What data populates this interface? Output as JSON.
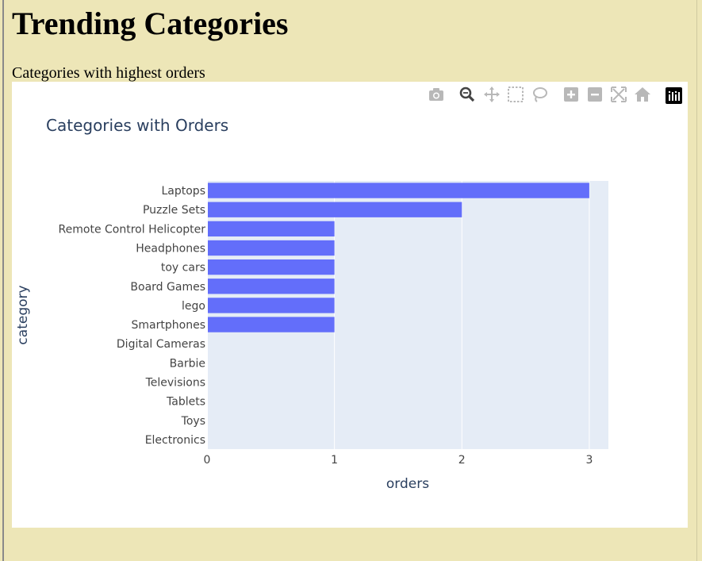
{
  "page": {
    "heading": "Trending Categories",
    "subheading": "Categories with highest orders"
  },
  "modebar": {
    "buttons": [
      "camera-icon",
      "zoom-icon",
      "pan-icon",
      "box-select-icon",
      "lasso-icon",
      "zoom-in-icon",
      "zoom-out-icon",
      "autoscale-icon",
      "reset-axes-icon",
      "plotly-logo-icon"
    ]
  },
  "colors": {
    "bar": "#636efa",
    "plot_bg": "#e5ecf6",
    "text": "#2a3f5f",
    "tick_text": "#444444",
    "page_bg": "#ede6b7"
  },
  "chart_data": {
    "type": "bar",
    "orientation": "horizontal",
    "title": "Categories with Orders",
    "xlabel": "orders",
    "ylabel": "category",
    "xlim": [
      0,
      3.15
    ],
    "xticks": [
      0,
      1,
      2,
      3
    ],
    "grid": true,
    "categories": [
      "Laptops",
      "Puzzle Sets",
      "Remote Control Helicopter",
      "Headphones",
      "toy cars",
      "Board Games",
      "lego",
      "Smartphones",
      "Digital Cameras",
      "Barbie",
      "Televisions",
      "Tablets",
      "Toys",
      "Electronics"
    ],
    "values": [
      3,
      2,
      1,
      1,
      1,
      1,
      1,
      1,
      0,
      0,
      0,
      0,
      0,
      0
    ]
  }
}
